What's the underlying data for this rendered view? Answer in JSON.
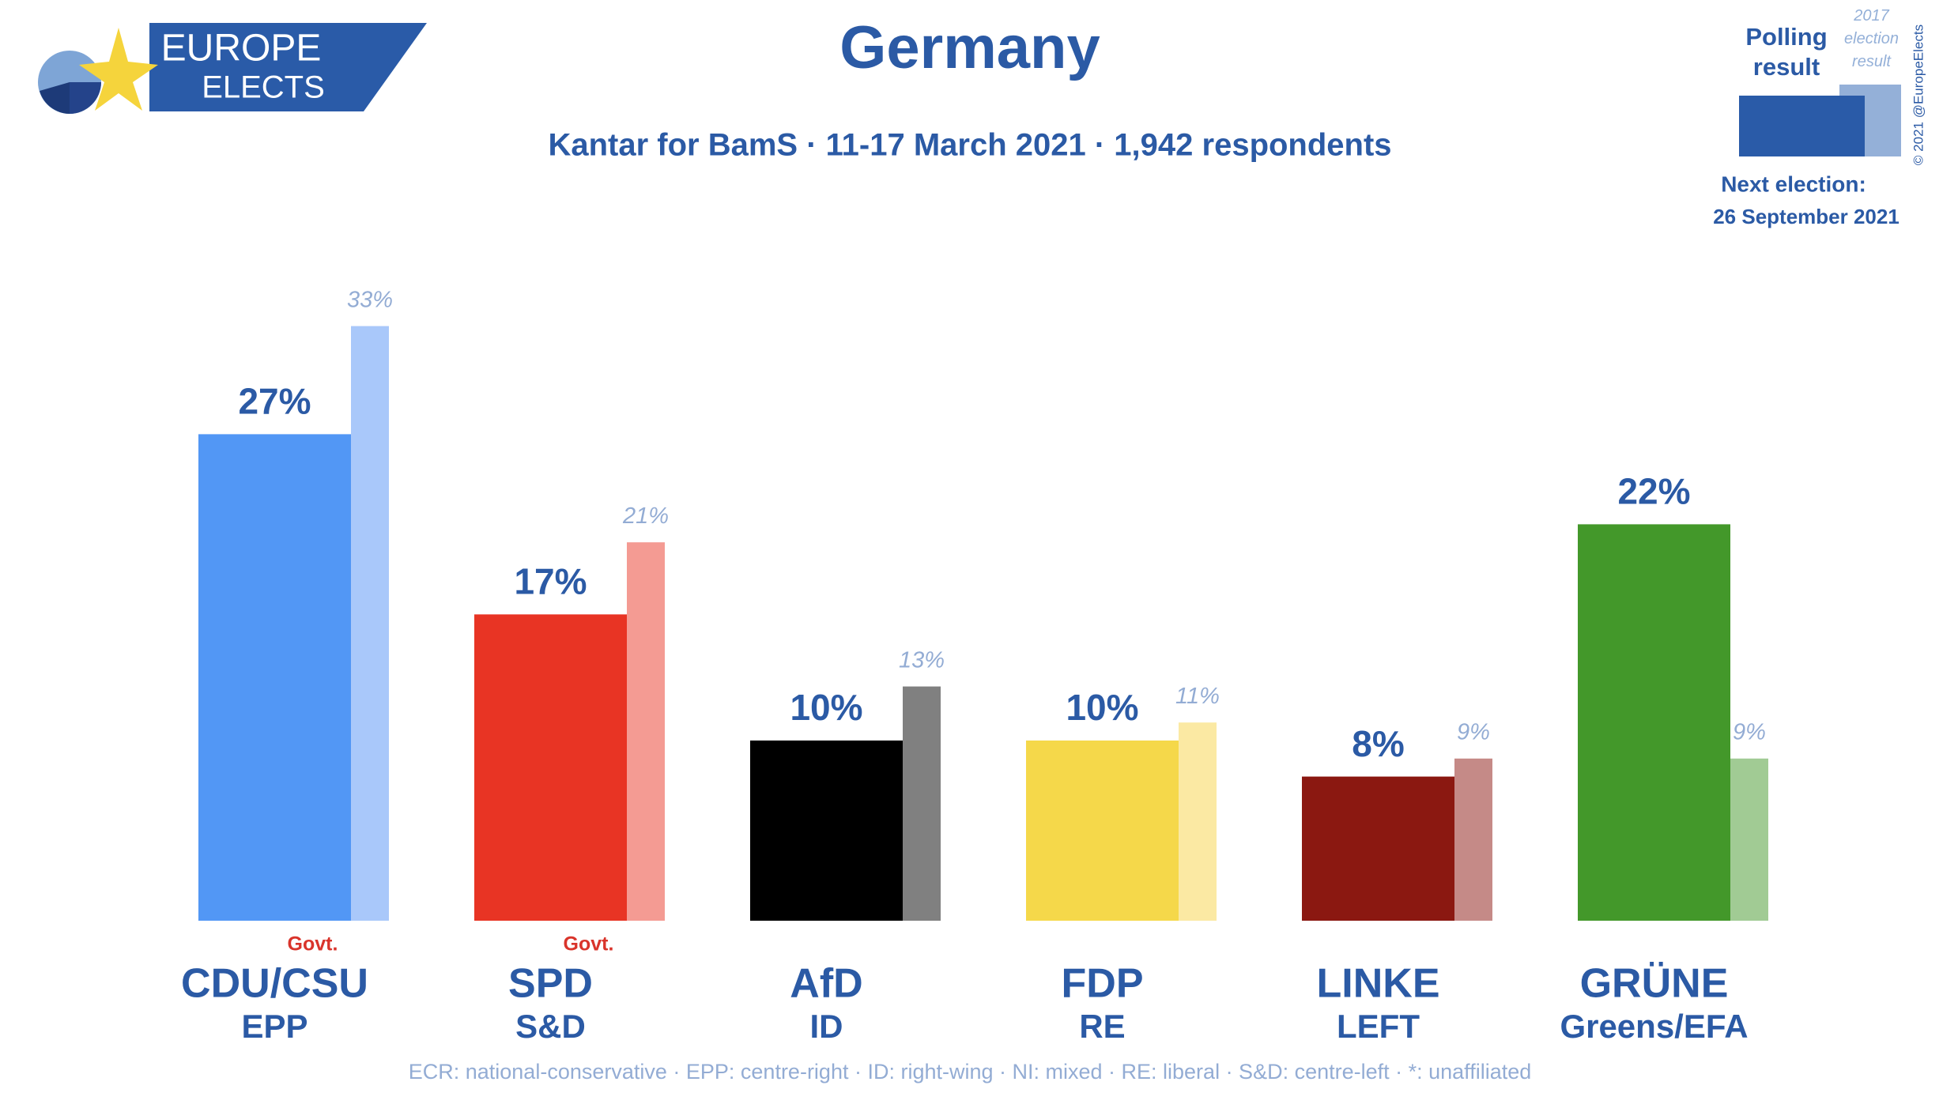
{
  "branding": {
    "logo_top": "EUROPE",
    "logo_bottom": "ELECTS",
    "copyright": "© 2021 @EuropeElects",
    "next_election_label": "Next election:",
    "next_election_date": "26 September 2021"
  },
  "chart_data": {
    "type": "bar",
    "title": "Germany",
    "subtitle": "Kantar for BamS · 11-17 March 2021 · 1,942 respondents",
    "categories": [
      "CDU/CSU",
      "SPD",
      "AfD",
      "FDP",
      "LINKE",
      "GRÜNE"
    ],
    "groups": [
      "EPP",
      "S&D",
      "ID",
      "RE",
      "LEFT",
      "Greens/EFA"
    ],
    "govt": [
      "Govt.",
      "Govt.",
      null,
      null,
      null,
      null
    ],
    "series": [
      {
        "name": "Polling result",
        "color": "#2a5ba8",
        "colors": [
          "#5297f5",
          "#e83424",
          "#000000",
          "#f5d84a",
          "#8b1811",
          "#43982a"
        ],
        "values": [
          27,
          17,
          10,
          10,
          8,
          22
        ],
        "value_labels": [
          "27%",
          "17%",
          "10%",
          "10%",
          "8%",
          "22%"
        ]
      },
      {
        "name": "2017 election result",
        "color": "#94b0d8",
        "colors": [
          "#a9c8fa",
          "#f49b93",
          "#808080",
          "#fbe9a3",
          "#c58a87",
          "#a1cb94"
        ],
        "values": [
          33,
          21,
          13,
          11,
          9,
          9
        ],
        "value_labels": [
          "33%",
          "21%",
          "13%",
          "11%",
          "9%",
          "9%"
        ]
      }
    ],
    "footnote": "ECR: national-conservative · EPP: centre-right · ID: right-wing · NI: mixed · RE: liberal · S&D: centre-left · *: unaffiliated"
  }
}
